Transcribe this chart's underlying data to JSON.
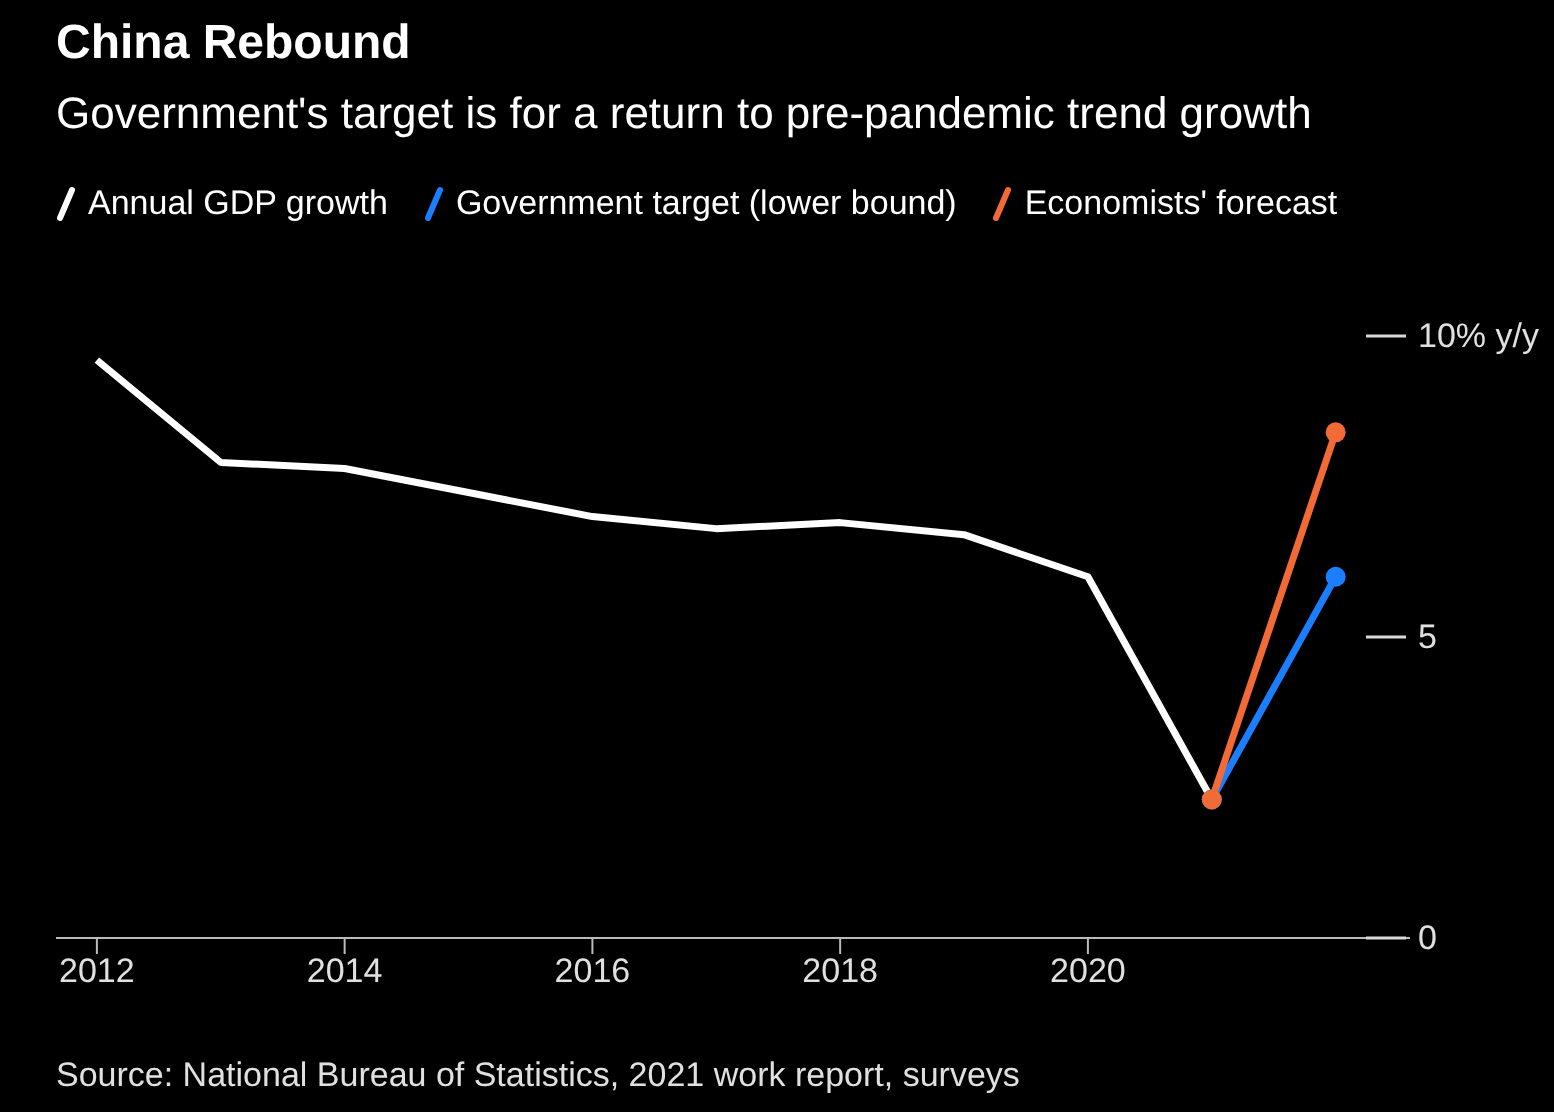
{
  "chart_data": {
    "type": "line",
    "title": "China Rebound",
    "subtitle": "Government's target is for a return to pre-pandemic trend growth",
    "x": [
      2012,
      2013,
      2014,
      2015,
      2016,
      2017,
      2018,
      2019,
      2020,
      2021,
      2022
    ],
    "series": [
      {
        "name": "Annual GDP growth",
        "color": "#ffffff",
        "marker": "none",
        "values": [
          9.6,
          7.9,
          7.8,
          7.4,
          7.0,
          6.8,
          6.9,
          6.7,
          6.0,
          2.3,
          null
        ]
      },
      {
        "name": "Government target (lower bound)",
        "color": "#1a7eff",
        "marker": "circle",
        "values": [
          null,
          null,
          null,
          null,
          null,
          null,
          null,
          null,
          null,
          2.3,
          6.0
        ]
      },
      {
        "name": "Economists' forecast",
        "color": "#f26a35",
        "marker": "circle",
        "values": [
          null,
          null,
          null,
          null,
          null,
          null,
          null,
          null,
          null,
          2.3,
          8.4
        ]
      }
    ],
    "xlim": [
      2011.67,
      2022.6
    ],
    "xticks": [
      2012,
      2014,
      2016,
      2018,
      2020
    ],
    "ylim": [
      0,
      10
    ],
    "yticks": [
      0,
      5,
      {
        "value": 10,
        "label": "10% y/y"
      }
    ],
    "grid": false,
    "legend": "top left",
    "line_style": "solid",
    "annotations": [
      "Source: National Bureau of Statistics, 2021 work report, surveys"
    ]
  }
}
